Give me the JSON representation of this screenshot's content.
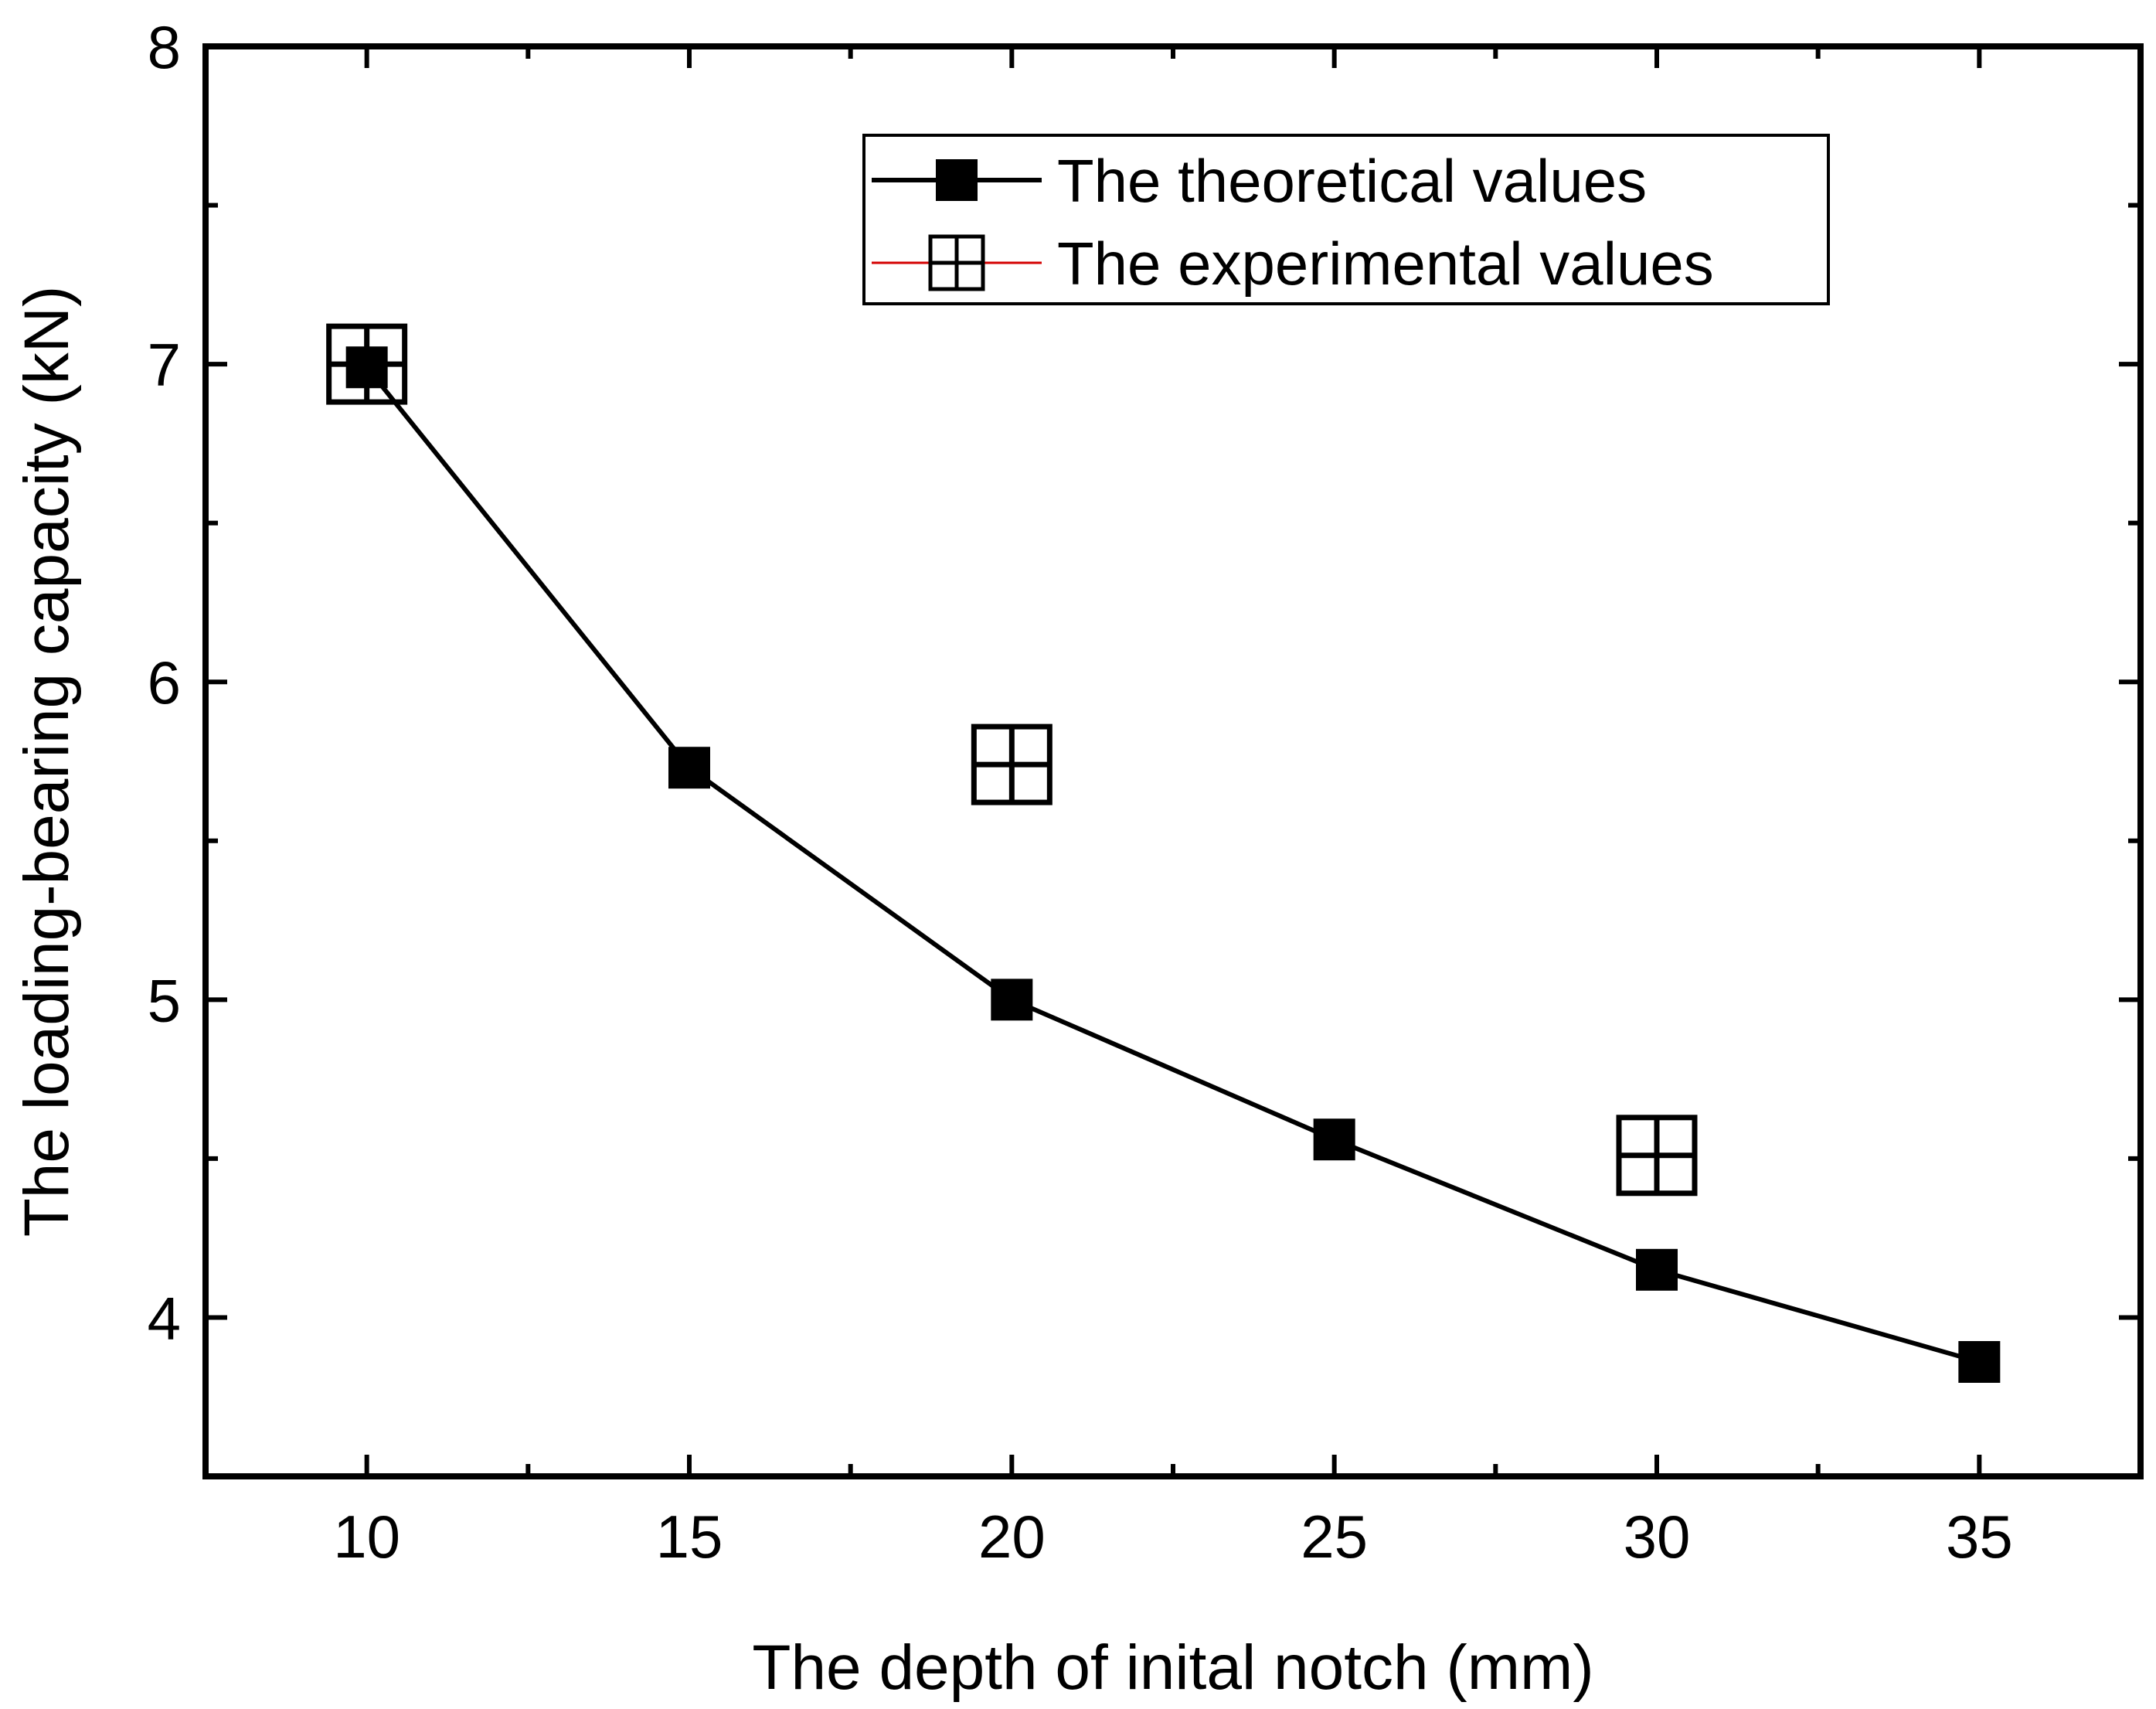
{
  "chart_data": {
    "type": "line",
    "title": "",
    "xlabel": "The depth of inital notch (mm)",
    "ylabel": "The loading-bearing capacity (kN)",
    "xlim": [
      7.5,
      37.5
    ],
    "ylim": [
      3.5,
      8
    ],
    "x_ticks": [
      10,
      15,
      20,
      25,
      30,
      35
    ],
    "x_tick_labels": [
      "10",
      "15",
      "20",
      "25",
      "30",
      "35"
    ],
    "y_ticks": [
      4,
      5,
      6,
      7,
      8
    ],
    "y_tick_labels": [
      "4",
      "5",
      "6",
      "7",
      "8"
    ],
    "grid": false,
    "legend_position": "top-right",
    "series": [
      {
        "name": "The theoretical values",
        "marker": "filled-square",
        "line": true,
        "color": "#000000",
        "x": [
          10,
          15,
          20,
          25,
          30,
          35
        ],
        "y": [
          6.99,
          5.73,
          5.0,
          4.56,
          4.15,
          3.86
        ]
      },
      {
        "name": "The experimental values",
        "marker": "square-plus",
        "line": false,
        "color": "#000000",
        "legend_line_color": "#d40000",
        "x": [
          10,
          20,
          30
        ],
        "y": [
          7.0,
          5.74,
          4.51
        ]
      }
    ]
  }
}
